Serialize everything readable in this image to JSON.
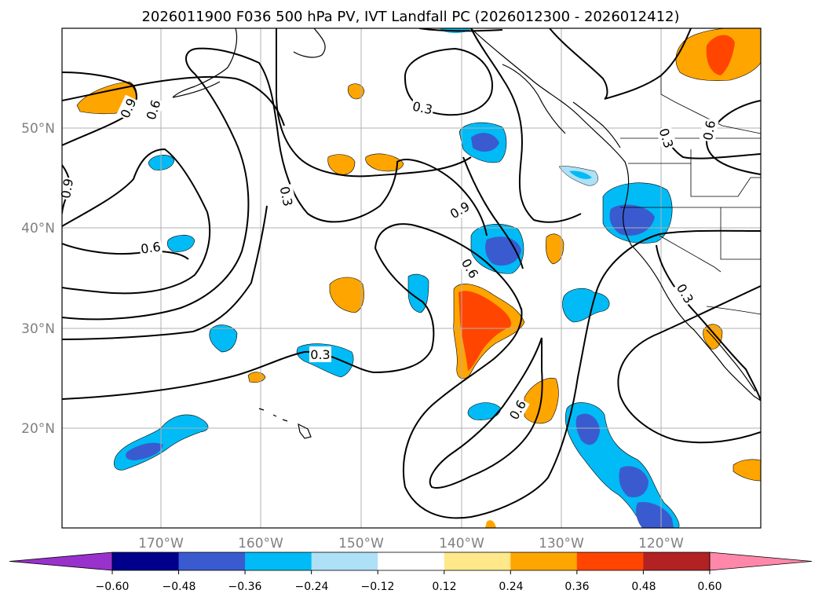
{
  "title": "2026011900 F036 500 hPa PV, IVT Landfall PC (2026012300 - 2026012412)",
  "map": {
    "lat_labels": [
      "50°N",
      "40°N",
      "30°N",
      "20°N"
    ],
    "lon_labels": [
      "170°W",
      "160°W",
      "150°W",
      "140°W",
      "130°W",
      "120°W"
    ],
    "contour_labels": [
      "0.9",
      "0.6",
      "0.3",
      "0.9",
      "0.6",
      "0.6",
      "0.3",
      "0.6",
      "0.3",
      "0.9",
      "0.3",
      "0.3",
      "0.6"
    ],
    "colors": {
      "neg_dark": "#3a5bcf",
      "neg_mid": "#00bbf5",
      "neg_light": "#aee0f7",
      "pos_light": "#ffe88a",
      "pos_mid": "#ffa500",
      "pos_dark": "#ff4500",
      "pos_darker": "#b22222"
    }
  },
  "colorbar": {
    "tick_labels": [
      "−0.60",
      "−0.48",
      "−0.36",
      "−0.24",
      "−0.12",
      "0.12",
      "0.24",
      "0.36",
      "0.48",
      "0.60"
    ],
    "colors": [
      "#9932cc",
      "#00008b",
      "#3a5bcf",
      "#00bbf5",
      "#aee0f7",
      "#ffffff",
      "#ffe88a",
      "#ffa500",
      "#ff4500",
      "#b22222",
      "#ff88aa"
    ]
  }
}
